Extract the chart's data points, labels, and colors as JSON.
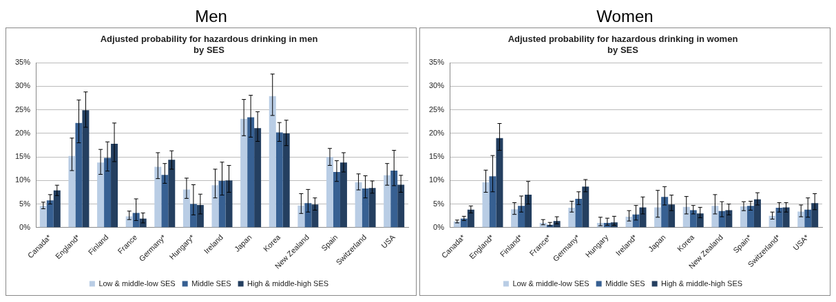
{
  "chart_data": [
    {
      "type": "bar",
      "title": "Men",
      "subtitle": "Adjusted probability for hazardous drinking in men\nby SES",
      "categories": [
        "Canada*",
        "England*",
        "Finland",
        "France",
        "Germany*",
        "Hungary*",
        "Ireland",
        "Japan",
        "Korea",
        "New Zealand",
        "Spain",
        "Switzerland",
        "USA"
      ],
      "ylim": [
        0,
        35
      ],
      "yticks": [
        {
          "value": 0,
          "label": "0%"
        },
        {
          "value": 5,
          "label": "5%"
        },
        {
          "value": 10,
          "label": "10%"
        },
        {
          "value": 15,
          "label": "15%"
        },
        {
          "value": 20,
          "label": "20%"
        },
        {
          "value": 25,
          "label": "25%"
        },
        {
          "value": 30,
          "label": "30%"
        },
        {
          "value": 35,
          "label": "35%"
        }
      ],
      "grid": "y",
      "legend": "bottom",
      "series": [
        {
          "name": "Low & middle-low SES",
          "color": "#b9cde5",
          "values": [
            4.6,
            15.2,
            13.8,
            2.4,
            12.9,
            8.1,
            9.0,
            23.1,
            27.9,
            4.7,
            15.0,
            9.6,
            11.1
          ],
          "errors": [
            [
              4.0,
              5.4
            ],
            [
              12.1,
              19.0
            ],
            [
              11.3,
              16.6
            ],
            [
              1.7,
              3.5
            ],
            [
              10.4,
              15.9
            ],
            [
              6.2,
              10.5
            ],
            [
              6.3,
              12.4
            ],
            [
              19.5,
              27.2
            ],
            [
              23.8,
              32.6
            ],
            [
              3.0,
              7.2
            ],
            [
              13.2,
              16.8
            ],
            [
              8.0,
              11.4
            ],
            [
              9.0,
              13.6
            ]
          ]
        },
        {
          "name": "Middle SES",
          "color": "#376092",
          "values": [
            5.8,
            22.2,
            14.8,
            3.1,
            11.2,
            5.0,
            9.9,
            23.4,
            20.2,
            5.2,
            11.8,
            8.3,
            12.1
          ],
          "errors": [
            [
              5.0,
              7.0
            ],
            [
              18.0,
              27.1
            ],
            [
              12.0,
              18.2
            ],
            [
              1.5,
              6.1
            ],
            [
              9.4,
              13.6
            ],
            [
              2.7,
              9.1
            ],
            [
              6.9,
              13.9
            ],
            [
              19.2,
              28.1
            ],
            [
              18.3,
              22.3
            ],
            [
              3.3,
              8.1
            ],
            [
              9.8,
              14.2
            ],
            [
              6.3,
              11.0
            ],
            [
              8.9,
              16.4
            ]
          ]
        },
        {
          "name": "High & middle-high SES",
          "color": "#243f60",
          "values": [
            7.9,
            24.9,
            17.8,
            1.9,
            14.4,
            4.8,
            10.0,
            21.1,
            20.0,
            4.9,
            13.8,
            8.4,
            9.1
          ],
          "errors": [
            [
              6.8,
              9.0
            ],
            [
              21.3,
              28.8
            ],
            [
              14.0,
              22.2
            ],
            [
              1.0,
              3.1
            ],
            [
              12.4,
              16.3
            ],
            [
              2.9,
              7.1
            ],
            [
              7.5,
              13.2
            ],
            [
              18.3,
              24.6
            ],
            [
              17.4,
              22.8
            ],
            [
              3.7,
              6.3
            ],
            [
              11.8,
              15.9
            ],
            [
              7.3,
              9.9
            ],
            [
              7.5,
              11.1
            ]
          ]
        }
      ]
    },
    {
      "type": "bar",
      "title": "Women",
      "subtitle": "Adjusted probability for hazardous drinking in women\nby SES",
      "categories": [
        "Canada*",
        "England*",
        "Finland*",
        "France*",
        "Germany*",
        "Hungary",
        "Ireland*",
        "Japan",
        "Korea",
        "New Zealand",
        "Spain*",
        "Switzerland*",
        "USA*"
      ],
      "ylim": [
        0,
        35
      ],
      "yticks": [
        {
          "value": 0,
          "label": "0%"
        },
        {
          "value": 5,
          "label": "5%"
        },
        {
          "value": 10,
          "label": "10%"
        },
        {
          "value": 15,
          "label": "15%"
        },
        {
          "value": 20,
          "label": "20%"
        },
        {
          "value": 25,
          "label": "25%"
        },
        {
          "value": 30,
          "label": "30%"
        },
        {
          "value": 35,
          "label": "35%"
        }
      ],
      "grid": "y",
      "legend": "bottom",
      "series": [
        {
          "name": "Low & middle-low SES",
          "color": "#b9cde5",
          "values": [
            1.3,
            9.6,
            3.9,
            1.0,
            4.2,
            1.0,
            2.3,
            4.3,
            4.4,
            4.6,
            4.5,
            2.5,
            3.4
          ],
          "errors": [
            [
              1.0,
              1.6
            ],
            [
              7.5,
              12.2
            ],
            [
              2.8,
              5.3
            ],
            [
              0.6,
              1.7
            ],
            [
              3.3,
              5.6
            ],
            [
              0.4,
              2.2
            ],
            [
              1.4,
              3.6
            ],
            [
              2.2,
              7.9
            ],
            [
              2.9,
              6.6
            ],
            [
              2.9,
              7.0
            ],
            [
              3.6,
              5.5
            ],
            [
              1.8,
              3.3
            ],
            [
              2.3,
              4.8
            ]
          ]
        },
        {
          "name": "Middle SES",
          "color": "#376092",
          "values": [
            1.9,
            10.9,
            4.6,
            0.6,
            6.1,
            1.0,
            2.8,
            6.5,
            3.7,
            3.5,
            4.6,
            4.2,
            3.8
          ],
          "errors": [
            [
              1.5,
              2.4
            ],
            [
              7.6,
              15.3
            ],
            [
              3.3,
              6.7
            ],
            [
              0.4,
              1.1
            ],
            [
              4.9,
              7.6
            ],
            [
              0.5,
              2.0
            ],
            [
              1.6,
              4.7
            ],
            [
              4.8,
              8.7
            ],
            [
              2.9,
              4.7
            ],
            [
              2.3,
              5.5
            ],
            [
              3.7,
              5.6
            ],
            [
              3.3,
              5.3
            ],
            [
              2.2,
              6.3
            ]
          ]
        },
        {
          "name": "High & middle-high SES",
          "color": "#243f60",
          "values": [
            3.8,
            19.0,
            7.0,
            1.4,
            8.7,
            1.1,
            4.3,
            4.9,
            3.0,
            3.7,
            6.0,
            4.3,
            5.2
          ],
          "errors": [
            [
              3.1,
              4.6
            ],
            [
              16.4,
              22.1
            ],
            [
              5.0,
              9.8
            ],
            [
              0.8,
              2.3
            ],
            [
              7.6,
              10.2
            ],
            [
              0.5,
              2.4
            ],
            [
              2.9,
              6.5
            ],
            [
              3.6,
              6.9
            ],
            [
              2.1,
              4.3
            ],
            [
              2.7,
              5.0
            ],
            [
              4.8,
              7.4
            ],
            [
              3.3,
              5.3
            ],
            [
              3.8,
              7.2
            ]
          ]
        }
      ]
    }
  ]
}
